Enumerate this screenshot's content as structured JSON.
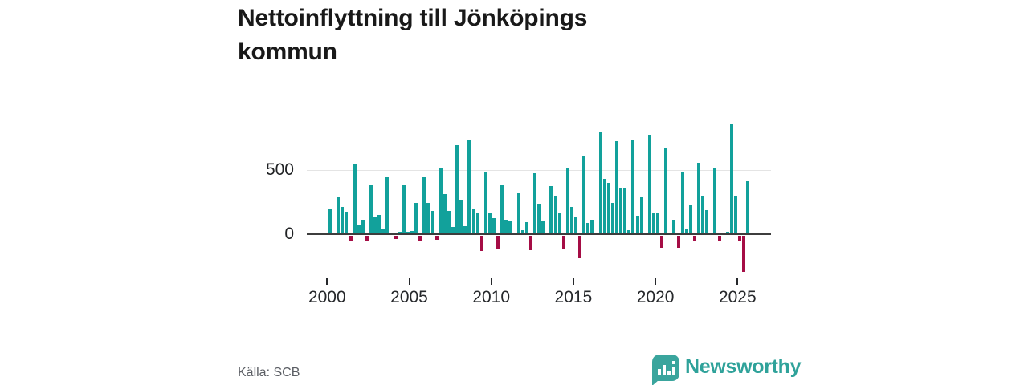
{
  "title": "Nettoinflyttning till Jönköpings kommun",
  "source": "Källa: SCB",
  "branding": {
    "name": "Newsworthy"
  },
  "colors": {
    "positive_bar": "#12a19b",
    "negative_bar": "#a50d45",
    "axis": "#3d3d3d",
    "gridline": "#e4e4e4",
    "logo_teal": "#3aa59d"
  },
  "chart_data": {
    "type": "bar",
    "title": "Nettoinflyttning till Jönköpings kommun",
    "start_quarter": "2000Q1",
    "end_quarter": "2025Q3",
    "x_tick_years": [
      2000,
      2005,
      2010,
      2015,
      2020,
      2025
    ],
    "y_ticks": [
      500,
      0
    ],
    "y_tick_labels": [
      "500",
      "0"
    ],
    "ylim": [
      -300,
      880
    ],
    "grid": "y-500-only",
    "legend": "none",
    "series": [
      {
        "year": 2000,
        "values": [
          195,
          15,
          295,
          215
        ]
      },
      {
        "year": 2001,
        "values": [
          180,
          -35,
          545,
          80
        ]
      },
      {
        "year": 2002,
        "values": [
          120,
          -45,
          380,
          145
        ]
      },
      {
        "year": 2003,
        "values": [
          155,
          45,
          445,
          10
        ]
      },
      {
        "year": 2004,
        "values": [
          -25,
          25,
          380,
          25
        ]
      },
      {
        "year": 2005,
        "values": [
          30,
          245,
          -45,
          445
        ]
      },
      {
        "year": 2006,
        "values": [
          245,
          185,
          -30,
          520
        ]
      },
      {
        "year": 2007,
        "values": [
          315,
          185,
          60,
          690
        ]
      },
      {
        "year": 2008,
        "values": [
          270,
          70,
          735,
          200
        ]
      },
      {
        "year": 2009,
        "values": [
          175,
          -115,
          480,
          165
        ]
      },
      {
        "year": 2010,
        "values": [
          130,
          -105,
          385,
          120
        ]
      },
      {
        "year": 2011,
        "values": [
          105,
          5,
          320,
          35
        ]
      },
      {
        "year": 2012,
        "values": [
          100,
          -110,
          475,
          240
        ]
      },
      {
        "year": 2013,
        "values": [
          105,
          20,
          375,
          305
        ]
      },
      {
        "year": 2014,
        "values": [
          170,
          -105,
          510,
          215
        ]
      },
      {
        "year": 2015,
        "values": [
          135,
          -170,
          605,
          95
        ]
      },
      {
        "year": 2016,
        "values": [
          120,
          10,
          795,
          430
        ]
      },
      {
        "year": 2017,
        "values": [
          400,
          245,
          720,
          355
        ]
      },
      {
        "year": 2018,
        "values": [
          360,
          35,
          735,
          150
        ]
      },
      {
        "year": 2019,
        "values": [
          290,
          10,
          770,
          175
        ]
      },
      {
        "year": 2020,
        "values": [
          165,
          -95,
          665,
          15
        ]
      },
      {
        "year": 2021,
        "values": [
          120,
          -95,
          490,
          50
        ]
      },
      {
        "year": 2022,
        "values": [
          230,
          -40,
          555,
          300
        ]
      },
      {
        "year": 2023,
        "values": [
          190,
          15,
          510,
          -40
        ]
      },
      {
        "year": 2024,
        "values": [
          5,
          25,
          855,
          300
        ]
      },
      {
        "year": 2025,
        "values": [
          -40,
          -280,
          415
        ]
      }
    ]
  }
}
